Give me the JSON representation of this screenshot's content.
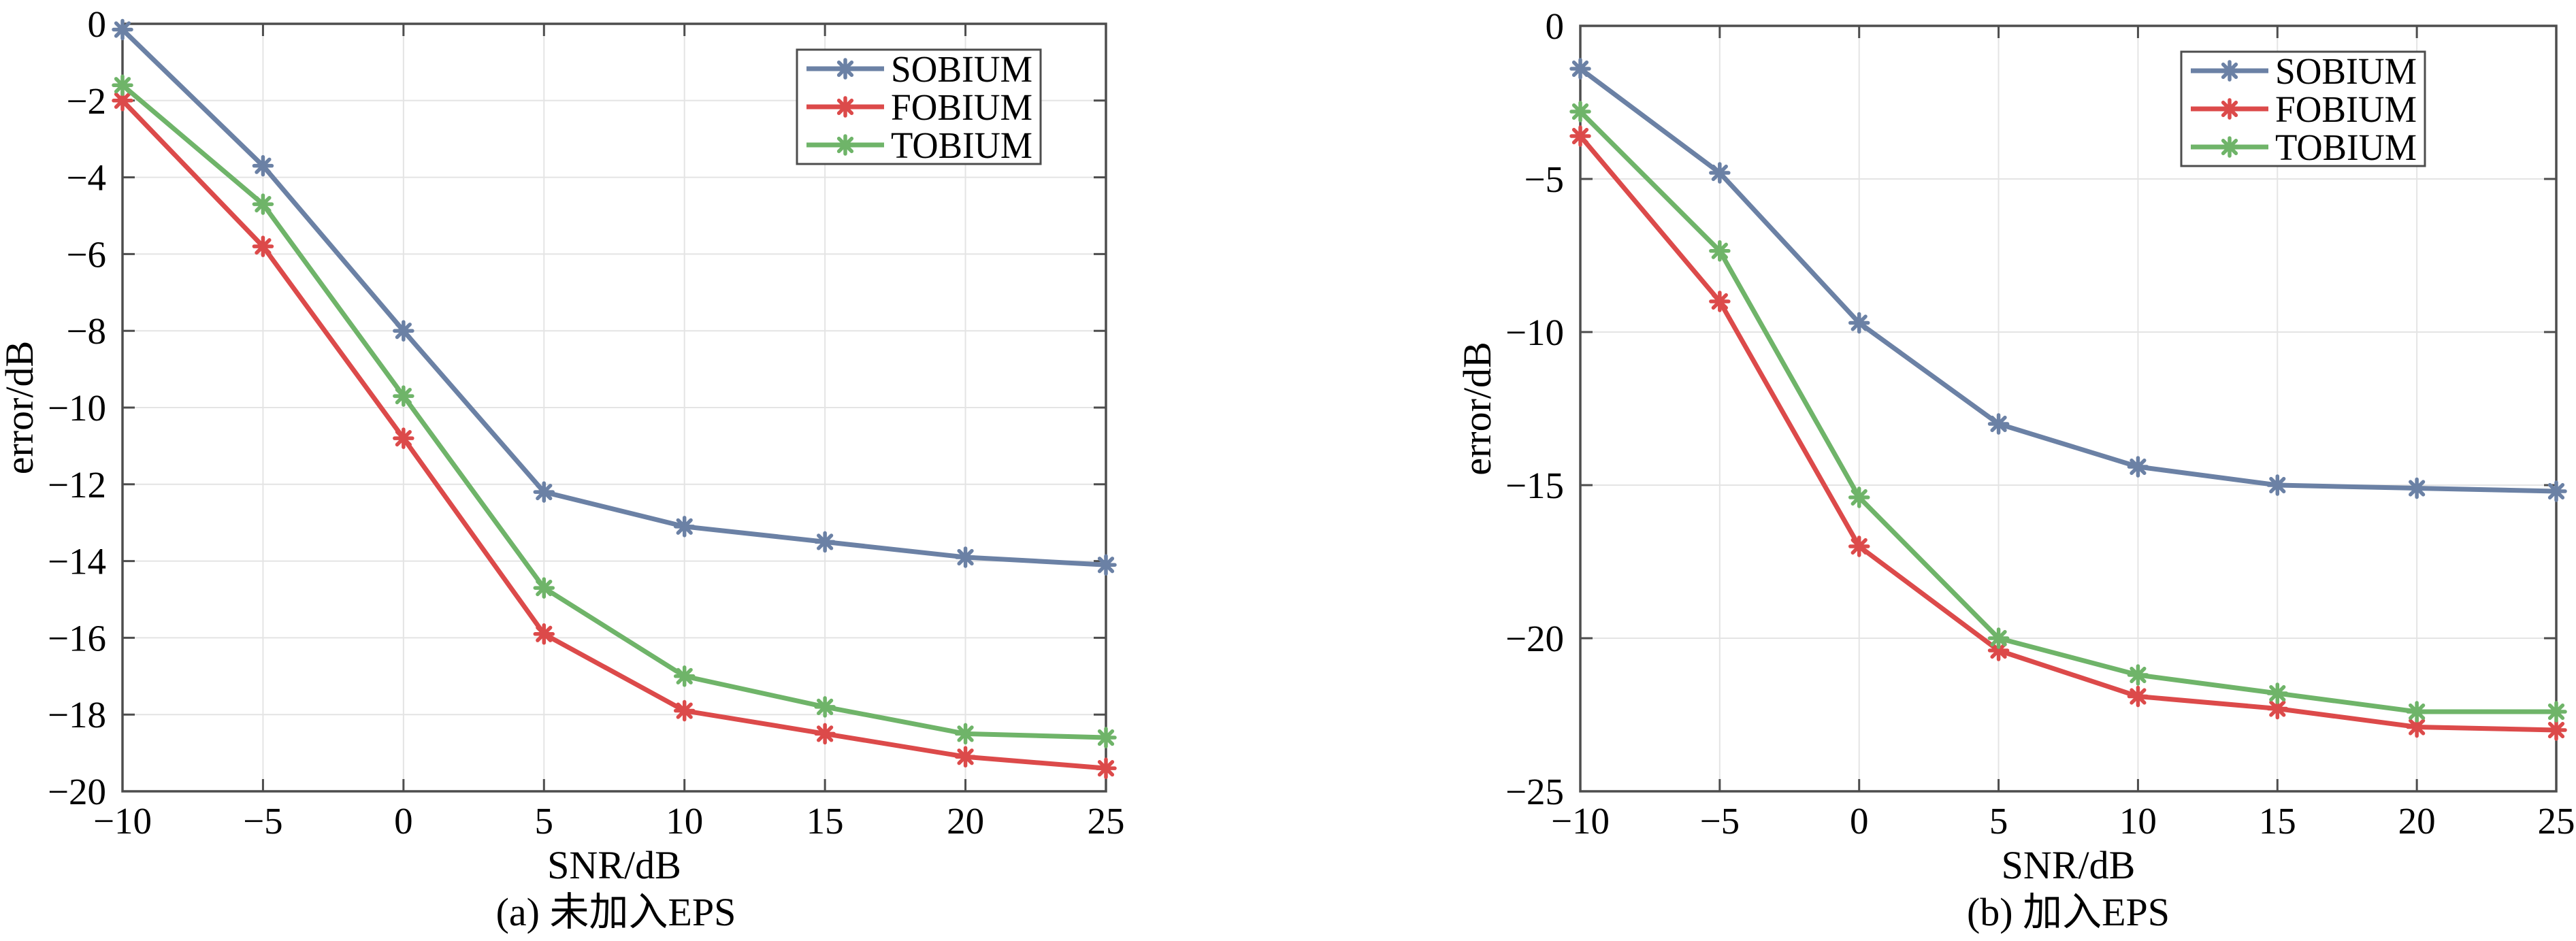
{
  "colors": {
    "axis": "#4d4d4d",
    "grid": "#e4e4e4",
    "text": "#000000",
    "background": "#ffffff",
    "sobium": "#6b81a5",
    "fobium": "#dc4a4a",
    "tobium": "#6fb469"
  },
  "chart_data": [
    {
      "id": "a",
      "type": "line",
      "title": "",
      "xlabel": "SNR/dB",
      "ylabel": "error/dB",
      "caption": "(a) 未加入EPS",
      "grid": true,
      "legend_position": "top-right",
      "x": [
        -10,
        -5,
        0,
        5,
        10,
        15,
        20,
        25
      ],
      "xlim": [
        -10,
        25
      ],
      "ylim": [
        -20,
        0
      ],
      "xticks": [
        -10,
        -5,
        0,
        5,
        10,
        15,
        20,
        25
      ],
      "yticks": [
        0,
        -2,
        -4,
        -6,
        -8,
        -10,
        -12,
        -14,
        -16,
        -18,
        -20
      ],
      "series": [
        {
          "name": "SOBIUM",
          "color": "#6b81a5",
          "marker": "asterisk",
          "values": [
            -0.15,
            -3.7,
            -8.0,
            -12.2,
            -13.1,
            -13.5,
            -13.9,
            -14.1
          ]
        },
        {
          "name": "FOBIUM",
          "color": "#dc4a4a",
          "marker": "asterisk",
          "values": [
            -2.0,
            -5.8,
            -10.8,
            -15.9,
            -17.9,
            -18.5,
            -19.1,
            -19.4
          ]
        },
        {
          "name": "TOBIUM",
          "color": "#6fb469",
          "marker": "asterisk",
          "values": [
            -1.6,
            -4.7,
            -9.7,
            -14.7,
            -17.0,
            -17.8,
            -18.5,
            -18.6
          ]
        }
      ]
    },
    {
      "id": "b",
      "type": "line",
      "title": "",
      "xlabel": "SNR/dB",
      "ylabel": "error/dB",
      "caption": "(b) 加入EPS",
      "grid": true,
      "legend_position": "top-right",
      "x": [
        -10,
        -5,
        0,
        5,
        10,
        15,
        20,
        25
      ],
      "xlim": [
        -10,
        25
      ],
      "ylim": [
        -25,
        0
      ],
      "xticks": [
        -10,
        -5,
        0,
        5,
        10,
        15,
        20,
        25
      ],
      "yticks": [
        0,
        -5,
        -10,
        -15,
        -20,
        -25
      ],
      "series": [
        {
          "name": "SOBIUM",
          "color": "#6b81a5",
          "marker": "asterisk",
          "values": [
            -1.4,
            -4.8,
            -9.7,
            -13.0,
            -14.4,
            -15.0,
            -15.1,
            -15.2
          ]
        },
        {
          "name": "FOBIUM",
          "color": "#dc4a4a",
          "marker": "asterisk",
          "values": [
            -3.6,
            -9.0,
            -17.0,
            -20.4,
            -21.9,
            -22.3,
            -22.9,
            -23.0
          ]
        },
        {
          "name": "TOBIUM",
          "color": "#6fb469",
          "marker": "asterisk",
          "values": [
            -2.8,
            -7.35,
            -15.4,
            -20.0,
            -21.2,
            -21.8,
            -22.4,
            -22.4
          ]
        }
      ]
    }
  ]
}
